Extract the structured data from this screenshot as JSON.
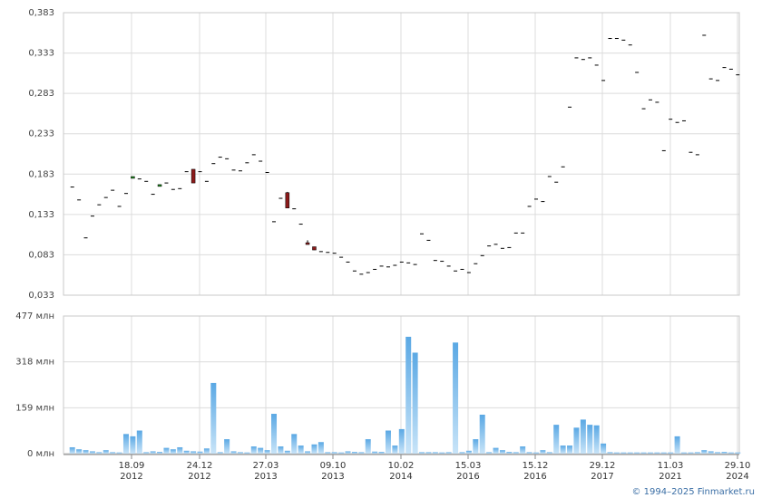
{
  "chart_data": [
    {
      "type": "candlestick",
      "title": "",
      "ylim": [
        0.033,
        0.383
      ],
      "y_ticks": [
        "0,383",
        "0,333",
        "0,283",
        "0,233",
        "0,183",
        "0,133",
        "0,083",
        "0,033"
      ],
      "colors": {
        "up": "#1e8a1e",
        "down": "#8b1a1a",
        "flat": "#000000"
      },
      "x_tick_labels": [
        [
          "18.09",
          "2012"
        ],
        [
          "24.12",
          "2012"
        ],
        [
          "27.03",
          "2013"
        ],
        [
          "09.10",
          "2013"
        ],
        [
          "10.02",
          "2014"
        ],
        [
          "15.03",
          "2016"
        ],
        [
          "15.12",
          "2016"
        ],
        [
          "29.12",
          "2017"
        ],
        [
          "11.03",
          "2021"
        ],
        [
          "29.10",
          "2024"
        ]
      ],
      "ohlc": [
        [
          0.167,
          0.167,
          0.167,
          0.167
        ],
        [
          0.151,
          0.151,
          0.151,
          0.151
        ],
        [
          0.104,
          0.104,
          0.104,
          0.104
        ],
        [
          0.131,
          0.131,
          0.131,
          0.131
        ],
        [
          0.145,
          0.145,
          0.145,
          0.145
        ],
        [
          0.154,
          0.154,
          0.154,
          0.154
        ],
        [
          0.163,
          0.163,
          0.163,
          0.163
        ],
        [
          0.143,
          0.143,
          0.143,
          0.143
        ],
        [
          0.159,
          0.159,
          0.159,
          0.159
        ],
        [
          0.178,
          0.18,
          0.178,
          0.18
        ],
        [
          0.177,
          0.177,
          0.177,
          0.177
        ],
        [
          0.174,
          0.174,
          0.174,
          0.174
        ],
        [
          0.158,
          0.158,
          0.158,
          0.158
        ],
        [
          0.168,
          0.17,
          0.168,
          0.17
        ],
        [
          0.172,
          0.172,
          0.172,
          0.172
        ],
        [
          0.164,
          0.164,
          0.164,
          0.164
        ],
        [
          0.165,
          0.165,
          0.165,
          0.165
        ],
        [
          0.186,
          0.186,
          0.186,
          0.186
        ],
        [
          0.189,
          0.189,
          0.172,
          0.172
        ],
        [
          0.186,
          0.186,
          0.186,
          0.186
        ],
        [
          0.174,
          0.174,
          0.174,
          0.174
        ],
        [
          0.196,
          0.196,
          0.196,
          0.196
        ],
        [
          0.204,
          0.204,
          0.204,
          0.204
        ],
        [
          0.202,
          0.202,
          0.202,
          0.202
        ],
        [
          0.188,
          0.188,
          0.188,
          0.188
        ],
        [
          0.187,
          0.187,
          0.187,
          0.187
        ],
        [
          0.197,
          0.197,
          0.197,
          0.197
        ],
        [
          0.207,
          0.207,
          0.207,
          0.207
        ],
        [
          0.199,
          0.199,
          0.199,
          0.199
        ],
        [
          0.185,
          0.185,
          0.185,
          0.185
        ],
        [
          0.124,
          0.124,
          0.124,
          0.124
        ],
        [
          0.153,
          0.153,
          0.153,
          0.153
        ],
        [
          0.16,
          0.161,
          0.141,
          0.141
        ],
        [
          0.14,
          0.14,
          0.14,
          0.14
        ],
        [
          0.121,
          0.121,
          0.121,
          0.121
        ],
        [
          0.098,
          0.101,
          0.096,
          0.096
        ],
        [
          0.093,
          0.093,
          0.089,
          0.089
        ],
        [
          0.087,
          0.087,
          0.087,
          0.087
        ],
        [
          0.086,
          0.086,
          0.086,
          0.086
        ],
        [
          0.085,
          0.085,
          0.085,
          0.085
        ],
        [
          0.08,
          0.08,
          0.08,
          0.08
        ],
        [
          0.074,
          0.074,
          0.074,
          0.074
        ],
        [
          0.063,
          0.063,
          0.063,
          0.063
        ],
        [
          0.059,
          0.059,
          0.059,
          0.059
        ],
        [
          0.061,
          0.061,
          0.061,
          0.061
        ],
        [
          0.065,
          0.065,
          0.065,
          0.065
        ],
        [
          0.069,
          0.069,
          0.069,
          0.069
        ],
        [
          0.068,
          0.068,
          0.068,
          0.068
        ],
        [
          0.07,
          0.07,
          0.07,
          0.07
        ],
        [
          0.074,
          0.074,
          0.074,
          0.074
        ],
        [
          0.073,
          0.073,
          0.073,
          0.073
        ],
        [
          0.071,
          0.071,
          0.071,
          0.071
        ],
        [
          0.109,
          0.109,
          0.109,
          0.109
        ],
        [
          0.101,
          0.101,
          0.101,
          0.101
        ],
        [
          0.076,
          0.076,
          0.076,
          0.076
        ],
        [
          0.075,
          0.075,
          0.075,
          0.075
        ],
        [
          0.069,
          0.069,
          0.069,
          0.069
        ],
        [
          0.063,
          0.063,
          0.063,
          0.063
        ],
        [
          0.065,
          0.065,
          0.065,
          0.065
        ],
        [
          0.061,
          0.061,
          0.061,
          0.061
        ],
        [
          0.072,
          0.072,
          0.072,
          0.072
        ],
        [
          0.082,
          0.082,
          0.082,
          0.082
        ],
        [
          0.094,
          0.094,
          0.094,
          0.094
        ],
        [
          0.096,
          0.096,
          0.096,
          0.096
        ],
        [
          0.091,
          0.091,
          0.091,
          0.091
        ],
        [
          0.092,
          0.092,
          0.092,
          0.092
        ],
        [
          0.11,
          0.11,
          0.11,
          0.11
        ],
        [
          0.11,
          0.11,
          0.11,
          0.11
        ],
        [
          0.143,
          0.143,
          0.143,
          0.143
        ],
        [
          0.152,
          0.152,
          0.152,
          0.152
        ],
        [
          0.149,
          0.149,
          0.149,
          0.149
        ],
        [
          0.18,
          0.18,
          0.18,
          0.18
        ],
        [
          0.173,
          0.173,
          0.173,
          0.173
        ],
        [
          0.192,
          0.192,
          0.192,
          0.192
        ],
        [
          0.266,
          0.266,
          0.266,
          0.266
        ],
        [
          0.327,
          0.327,
          0.327,
          0.327
        ],
        [
          0.325,
          0.325,
          0.325,
          0.325
        ],
        [
          0.327,
          0.327,
          0.327,
          0.327
        ],
        [
          0.318,
          0.318,
          0.318,
          0.318
        ],
        [
          0.299,
          0.299,
          0.299,
          0.299
        ],
        [
          0.351,
          0.351,
          0.351,
          0.351
        ],
        [
          0.351,
          0.351,
          0.351,
          0.351
        ],
        [
          0.349,
          0.349,
          0.349,
          0.349
        ],
        [
          0.343,
          0.343,
          0.343,
          0.343
        ],
        [
          0.309,
          0.309,
          0.309,
          0.309
        ],
        [
          0.264,
          0.264,
          0.264,
          0.264
        ],
        [
          0.275,
          0.275,
          0.275,
          0.275
        ],
        [
          0.272,
          0.272,
          0.272,
          0.272
        ],
        [
          0.212,
          0.212,
          0.212,
          0.212
        ],
        [
          0.251,
          0.251,
          0.251,
          0.251
        ],
        [
          0.247,
          0.247,
          0.247,
          0.247
        ],
        [
          0.249,
          0.249,
          0.249,
          0.249
        ],
        [
          0.21,
          0.21,
          0.21,
          0.21
        ],
        [
          0.207,
          0.207,
          0.207,
          0.207
        ],
        [
          0.355,
          0.355,
          0.355,
          0.355
        ],
        [
          0.301,
          0.301,
          0.301,
          0.301
        ],
        [
          0.299,
          0.299,
          0.299,
          0.299
        ],
        [
          0.315,
          0.315,
          0.315,
          0.315
        ],
        [
          0.313,
          0.313,
          0.313,
          0.313
        ],
        [
          0.306,
          0.306,
          0.306,
          0.306
        ]
      ]
    },
    {
      "type": "bar",
      "title": "",
      "ylim": [
        0,
        477
      ],
      "y_unit": "млн",
      "y_ticks": [
        "477 млн",
        "318 млн",
        "159 млн",
        "0 млн"
      ],
      "bar_color": "#8ec4ec",
      "x_tick_labels": [
        [
          "18.09",
          "2012"
        ],
        [
          "24.12",
          "2012"
        ],
        [
          "27.03",
          "2013"
        ],
        [
          "09.10",
          "2013"
        ],
        [
          "10.02",
          "2014"
        ],
        [
          "15.03",
          "2016"
        ],
        [
          "15.12",
          "2016"
        ],
        [
          "29.12",
          "2017"
        ],
        [
          "11.03",
          "2021"
        ],
        [
          "29.10",
          "2024"
        ]
      ],
      "values": [
        22,
        15,
        12,
        8,
        5,
        12,
        5,
        4,
        68,
        60,
        80,
        5,
        8,
        6,
        20,
        15,
        22,
        10,
        8,
        7,
        18,
        245,
        5,
        50,
        8,
        5,
        4,
        25,
        20,
        12,
        138,
        25,
        10,
        68,
        28,
        8,
        32,
        40,
        5,
        5,
        4,
        8,
        6,
        5,
        50,
        7,
        6,
        80,
        28,
        85,
        405,
        350,
        5,
        5,
        5,
        4,
        5,
        385,
        5,
        10,
        50,
        135,
        5,
        20,
        12,
        6,
        5,
        25,
        5,
        4,
        12,
        5,
        100,
        28,
        28,
        90,
        118,
        100,
        98,
        35,
        5,
        4,
        4,
        4,
        4,
        4,
        4,
        4,
        4,
        4,
        60,
        4,
        4,
        5,
        12,
        8,
        5,
        6,
        4,
        4
      ]
    }
  ],
  "footer": {
    "copyright": "© 1994–2025 Finmarket.ru"
  }
}
